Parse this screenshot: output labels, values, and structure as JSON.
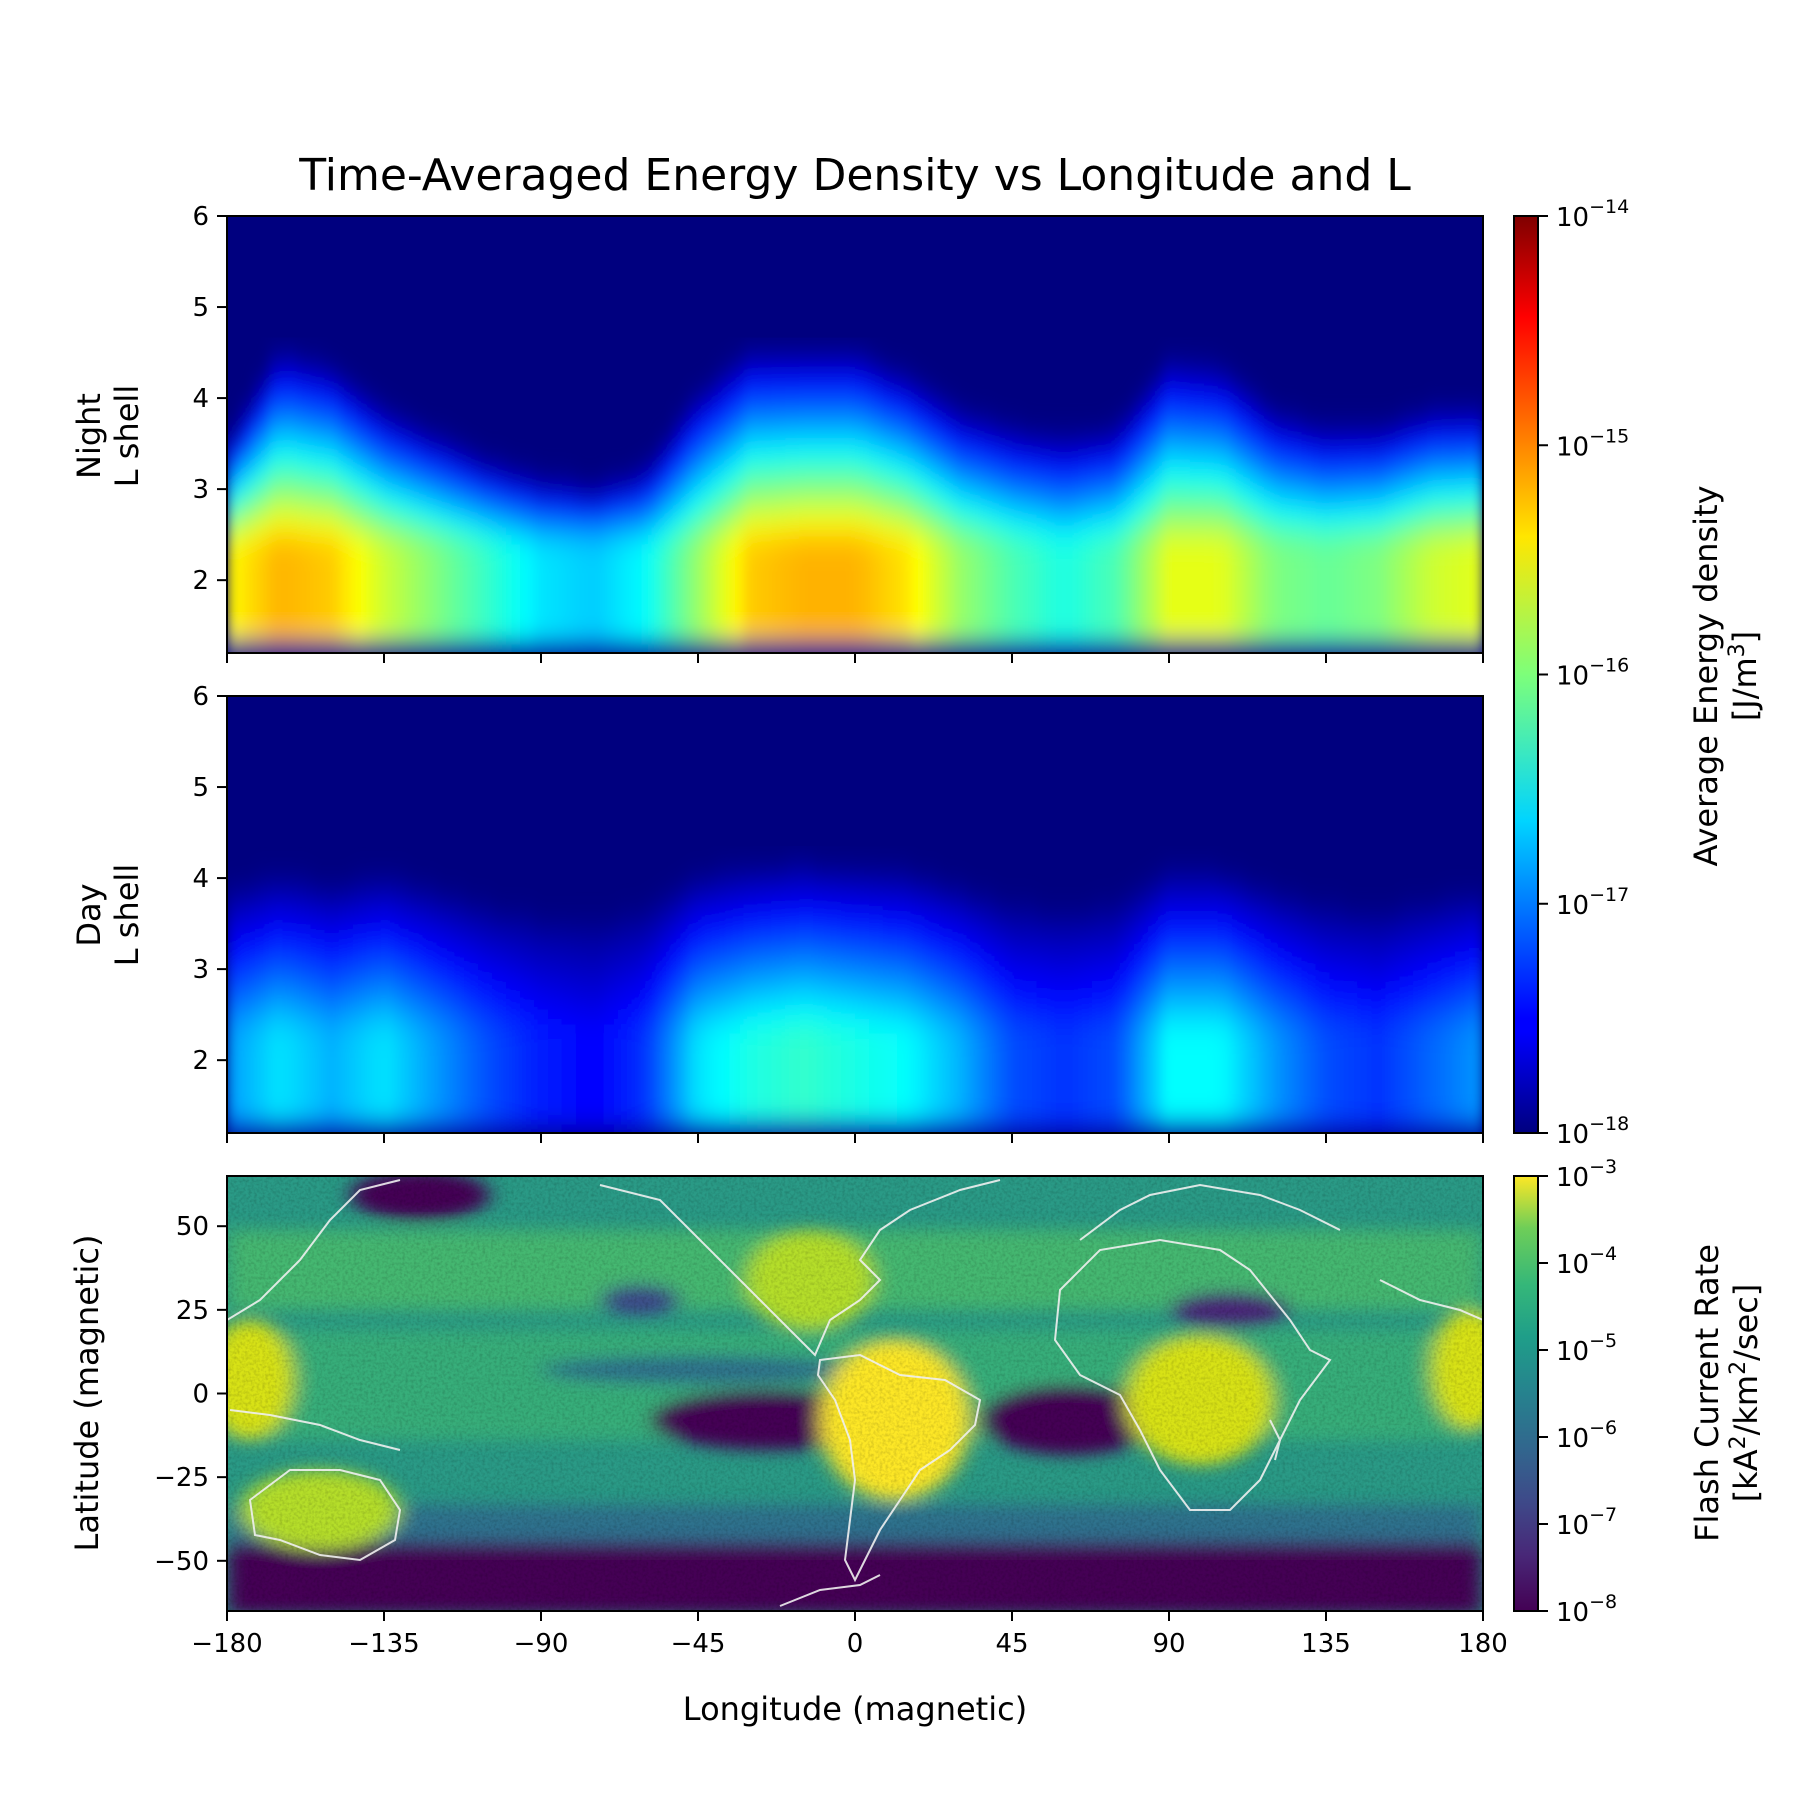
{
  "chart_data": [
    {
      "type": "heatmap",
      "panel": "night",
      "title": "Time-Averaged Energy Density vs Longitude and L",
      "ylabel": [
        "Night",
        "L shell"
      ],
      "xlim": [
        -180,
        180
      ],
      "ylim": [
        1.2,
        6
      ],
      "yticks": [
        2,
        3,
        4,
        5,
        6
      ],
      "xticks": [
        -180,
        -135,
        -90,
        -45,
        0,
        45,
        90,
        135,
        180
      ],
      "colorscale": "jet",
      "log_scale": true,
      "value_range": [
        1e-18,
        1e-14
      ],
      "longitude_profile": {
        "lon": [
          -180,
          -165,
          -150,
          -135,
          -120,
          -105,
          -90,
          -75,
          -60,
          -45,
          -30,
          -15,
          0,
          15,
          30,
          45,
          60,
          75,
          90,
          105,
          120,
          135,
          150,
          165,
          180
        ],
        "peak_log10": [
          -15.5,
          -15.2,
          -15.3,
          -15.7,
          -16.0,
          -16.3,
          -16.6,
          -16.7,
          -16.5,
          -15.9,
          -15.3,
          -15.2,
          -15.2,
          -15.4,
          -15.9,
          -16.2,
          -16.4,
          -16.2,
          -15.6,
          -15.6,
          -16.0,
          -16.1,
          -16.0,
          -15.7,
          -15.6
        ],
        "extent_L": [
          3.6,
          4.7,
          4.5,
          4.0,
          3.7,
          3.4,
          3.2,
          3.1,
          3.3,
          4.2,
          4.7,
          4.7,
          4.7,
          4.4,
          4.0,
          3.8,
          3.7,
          3.8,
          4.6,
          4.5,
          4.0,
          3.8,
          3.8,
          4.0,
          4.0
        ]
      }
    },
    {
      "type": "heatmap",
      "panel": "day",
      "ylabel": [
        "Day",
        "L shell"
      ],
      "xlim": [
        -180,
        180
      ],
      "ylim": [
        1.2,
        6
      ],
      "yticks": [
        2,
        3,
        4,
        5,
        6
      ],
      "xticks": [
        -180,
        -135,
        -90,
        -45,
        0,
        45,
        90,
        135,
        180
      ],
      "colorscale": "jet",
      "log_scale": true,
      "value_range": [
        1e-18,
        1e-14
      ],
      "longitude_profile": {
        "lon": [
          -180,
          -165,
          -150,
          -135,
          -120,
          -105,
          -90,
          -75,
          -60,
          -45,
          -30,
          -15,
          0,
          15,
          30,
          45,
          60,
          75,
          90,
          105,
          120,
          135,
          150,
          165,
          180
        ],
        "peak_log10": [
          -16.9,
          -16.6,
          -16.8,
          -16.6,
          -16.9,
          -17.2,
          -17.4,
          -17.5,
          -17.3,
          -16.6,
          -16.4,
          -16.3,
          -16.4,
          -16.5,
          -16.8,
          -17.2,
          -17.3,
          -17.2,
          -16.5,
          -16.5,
          -16.9,
          -17.2,
          -17.3,
          -17.1,
          -16.9
        ]
      }
    },
    {
      "type": "heatmap",
      "panel": "flash",
      "xlabel": "Longitude (magnetic)",
      "ylabel": "Latitude (magnetic)",
      "xlim": [
        -180,
        180
      ],
      "ylim": [
        -65,
        65
      ],
      "yticks": [
        -50,
        -25,
        0,
        25,
        50
      ],
      "xticks": [
        -180,
        -135,
        -90,
        -45,
        0,
        45,
        90,
        135,
        180
      ],
      "colorscale": "viridis",
      "log_scale": true,
      "value_range": [
        1e-08,
        0.001
      ],
      "overlay": "coastlines"
    }
  ],
  "xtick_labels": [
    "−180",
    "−135",
    "−90",
    "−45",
    "0",
    "45",
    "90",
    "135",
    "180"
  ],
  "colorbars": {
    "energy": {
      "label": "Average Energy density",
      "unit_prefix": "[J/m",
      "unit_sup": "3",
      "unit_suffix": "]",
      "ticks": [
        {
          "base": "10",
          "exp": "−14"
        },
        {
          "base": "10",
          "exp": "−15"
        },
        {
          "base": "10",
          "exp": "−16"
        },
        {
          "base": "10",
          "exp": "−17"
        },
        {
          "base": "10",
          "exp": "−18"
        }
      ]
    },
    "flash": {
      "label": "Flash Current Rate",
      "unit_a": "[kA",
      "unit_sup1": "2",
      "unit_b": "/km",
      "unit_sup2": "2",
      "unit_c": "/sec]",
      "ticks": [
        {
          "base": "10",
          "exp": "−3"
        },
        {
          "base": "10",
          "exp": "−4"
        },
        {
          "base": "10",
          "exp": "−5"
        },
        {
          "base": "10",
          "exp": "−6"
        },
        {
          "base": "10",
          "exp": "−7"
        },
        {
          "base": "10",
          "exp": "−8"
        }
      ]
    }
  }
}
